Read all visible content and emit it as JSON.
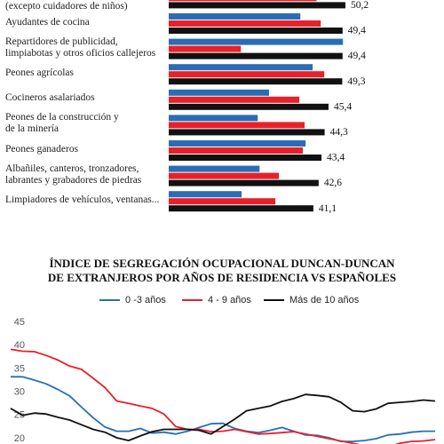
{
  "chart_data": [
    {
      "type": "hbar",
      "categories": [
        "(excepto cuidadores de niños)",
        "Ayudantes de cocina",
        "Repartidores de publicidad,\nlimpiabotas y otros oficios callejeros",
        "Peones agrícolas",
        "Cocineros asalariados",
        "Peones de la construcción y\nde la minería",
        "Peones ganaderos",
        "Albañiles, canteros, tronzadores,\nlabrantes y grabadores de piedras",
        "Limpiadores de vehículos, ventanas..."
      ],
      "xlim": [
        0,
        55
      ],
      "series": [
        {
          "color": "#2a6db5",
          "values": [
            40,
            37.4,
            49.5,
            40.9,
            28.5,
            25.3,
            38.9,
            25.8,
            20.7
          ]
        },
        {
          "color": "#e8202a",
          "values": [
            42,
            43.2,
            20.5,
            44.2,
            37.1,
            38.6,
            38.1,
            31.3,
            30.3
          ]
        },
        {
          "color": "#111111",
          "values": [
            50.2,
            49.4,
            49.4,
            49.3,
            45.4,
            44.3,
            43.4,
            42.6,
            41.1
          ],
          "value_labels": [
            "50,2",
            "49,4",
            "49,4",
            "49,3",
            "45,4",
            "44,3",
            "43,4",
            "42,6",
            "41,1"
          ]
        }
      ]
    },
    {
      "type": "line",
      "title": [
        "ÍNDICE DE SEGREGACIÓN OCUPACIONAL DUNCAN-DUNCAN",
        "DE EXTRANJEROS POR AÑOS DE RESIDENCIA VS ESPAÑOLES"
      ],
      "ylim": [
        20,
        45
      ],
      "yticks": [
        20,
        25,
        30,
        35,
        40,
        45
      ],
      "series": [
        {
          "name": "0 -3 años",
          "color": "#2a6db5",
          "values": [
            33.3,
            33.3,
            32.6,
            31.8,
            30.6,
            29.2,
            26.8,
            24.5,
            22.5,
            21.6,
            21.6,
            22.2,
            21.2,
            21.4,
            21,
            21.6,
            22.4,
            23.2,
            23.3,
            22.2,
            21.6,
            21.3,
            21.8,
            22.4,
            21.6,
            20.8,
            20.7,
            20.2,
            19.4,
            19.4,
            19.6,
            20,
            20.8,
            21,
            21.4,
            21.6,
            21.6
          ]
        },
        {
          "name": "4 - 9 años",
          "color": "#e8202a",
          "values": [
            39.2,
            38.8,
            38.7,
            37.9,
            36.9,
            35.6,
            34.9,
            33,
            31,
            28.1,
            27.6,
            27,
            26.5,
            25.3,
            22.6,
            22,
            22,
            21.5,
            21.6,
            22,
            21.5,
            21,
            21.1,
            21.3,
            21.5,
            21,
            20.5,
            20,
            19.5,
            19,
            18.5,
            18,
            18.2,
            19,
            19.4,
            19.5,
            19.8
          ]
        },
        {
          "name": "Más de 10 años",
          "color": "#111111",
          "values": [
            26.5,
            25,
            25.5,
            25.3,
            24.6,
            24,
            23,
            22,
            21.4,
            20.2,
            19.6,
            20.6,
            21.5,
            22,
            22,
            22,
            21.8,
            21,
            22.6,
            24.2,
            26,
            26.5,
            27,
            28,
            28.6,
            29.5,
            29.3,
            29,
            27.8,
            26,
            25.8,
            26.4,
            27.6,
            27.8,
            28,
            28.3,
            28.1
          ]
        }
      ]
    }
  ]
}
